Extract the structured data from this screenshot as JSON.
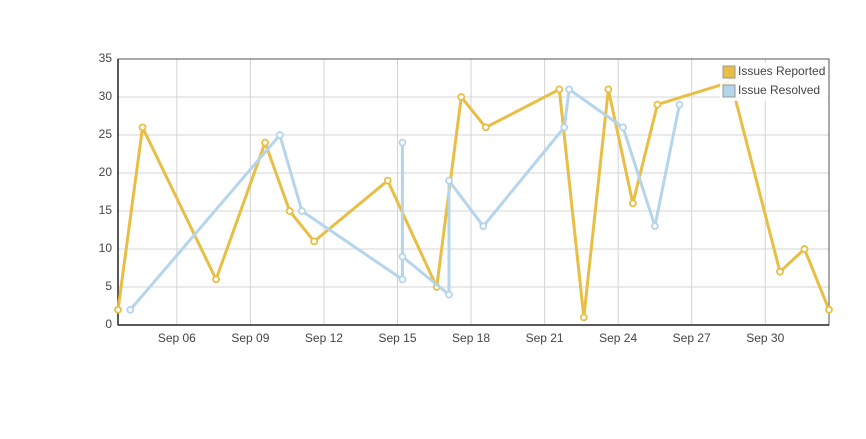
{
  "chart_data": {
    "type": "line",
    "xlim": [
      3.6,
      32.6
    ],
    "xticks": [
      {
        "value": 6,
        "label": "Sep 06"
      },
      {
        "value": 9,
        "label": "Sep 09"
      },
      {
        "value": 12,
        "label": "Sep 12"
      },
      {
        "value": 15,
        "label": "Sep 15"
      },
      {
        "value": 18,
        "label": "Sep 18"
      },
      {
        "value": 21,
        "label": "Sep 21"
      },
      {
        "value": 24,
        "label": "Sep 24"
      },
      {
        "value": 27,
        "label": "Sep 27"
      },
      {
        "value": 30,
        "label": "Sep 30"
      }
    ],
    "ylim": [
      0,
      35
    ],
    "yticks": [
      0,
      5,
      10,
      15,
      20,
      25,
      30,
      35
    ],
    "grid": true,
    "legend": "top-right",
    "series": [
      {
        "name": "Issues Reported",
        "color": "#e8be45",
        "x": [
          3.6,
          4.6,
          7.6,
          9.6,
          10.6,
          11.6,
          14.6,
          16.6,
          17.6,
          18.6,
          21.6,
          22.6,
          23.6,
          24.6,
          25.6,
          28.6,
          30.6,
          31.6,
          32.6
        ],
        "values": [
          2,
          26,
          6,
          24,
          15,
          11,
          19,
          5,
          30,
          26,
          31,
          1,
          31,
          16,
          29,
          32,
          7,
          10,
          2
        ]
      },
      {
        "name": "Issue Resolved",
        "color": "#b5d5ec",
        "x": [
          4.1,
          10.2,
          11.1,
          15.2,
          15.2,
          15.2,
          17.1,
          17.1,
          18.5,
          21.8,
          22.0,
          24.2,
          25.5,
          26.5
        ],
        "values": [
          2,
          25,
          15,
          6,
          24,
          9,
          4,
          19,
          13,
          26,
          31,
          26,
          13,
          29
        ]
      }
    ]
  }
}
